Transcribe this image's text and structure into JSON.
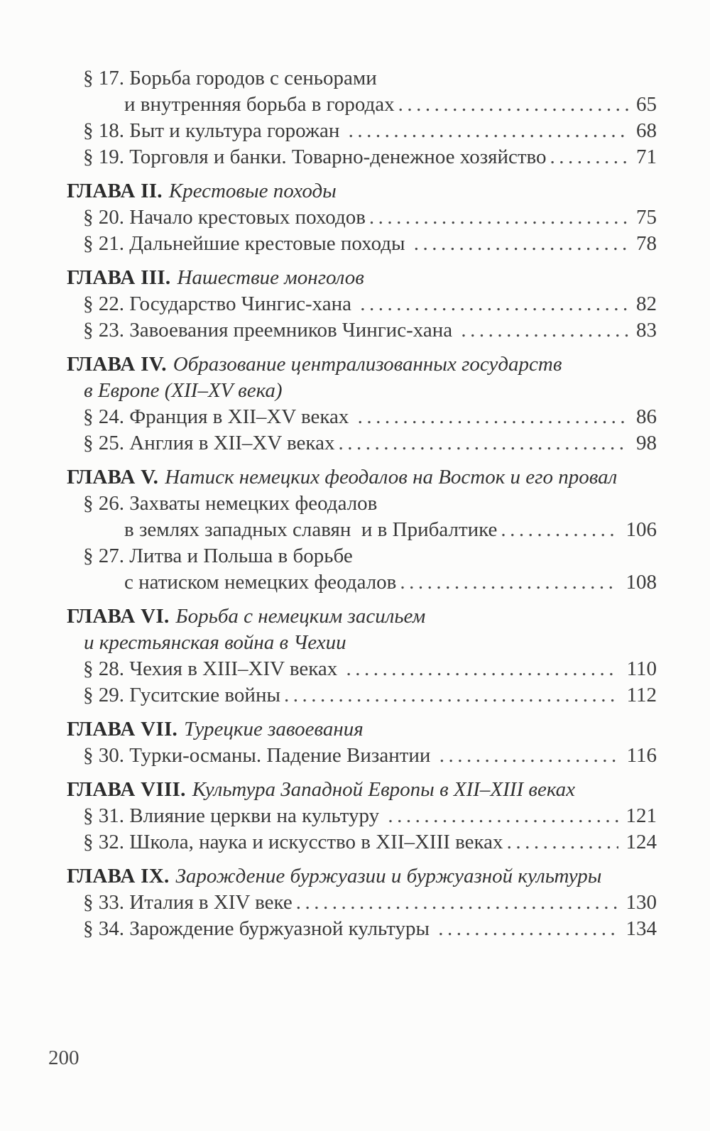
{
  "page": {
    "folio": "200"
  },
  "toc": {
    "lines": [
      {
        "style": "section",
        "text": "§ 17. Борьба городов с сеньорами"
      },
      {
        "style": "section-cont",
        "text": "и внутренняя борьба в городах",
        "page": "65"
      },
      {
        "style": "section",
        "text": "§ 18. Быт и культура горожан ",
        "page": "68"
      },
      {
        "style": "section",
        "text": "§ 19. Торговля и банки. Товарно-денежное хозяйство",
        "page": "71"
      },
      {
        "style": "chapter",
        "bold": "ГЛАВА II.",
        "italic": "Крестовые походы"
      },
      {
        "style": "section",
        "text": "§ 20. Начало крестовых походов",
        "page": "75"
      },
      {
        "style": "section",
        "text": "§ 21. Дальнейшие крестовые походы ",
        "page": "78"
      },
      {
        "style": "chapter",
        "bold": "ГЛАВА III.",
        "italic": "Нашествие монголов"
      },
      {
        "style": "section",
        "text": "§ 22. Государство Чингис-хана ",
        "page": "82"
      },
      {
        "style": "section",
        "text": "§ 23. Завоевания преемников Чингис-хана ",
        "page": "83"
      },
      {
        "style": "chapter",
        "bold": "ГЛАВА IV.",
        "italic": "Образование централизованных государств"
      },
      {
        "style": "chapter-cont",
        "italic": "в Европе (XII–XV века)"
      },
      {
        "style": "section",
        "text": "§ 24. Франция в XII–XV веках ",
        "page": "86"
      },
      {
        "style": "section",
        "text": "§ 25. Англия в XII–XV веках",
        "page": "98"
      },
      {
        "style": "chapter",
        "bold": "ГЛАВА V.",
        "italic": "Натиск немецких феодалов на Восток и его провал"
      },
      {
        "style": "section",
        "text": "§ 26. Захваты немецких феодалов"
      },
      {
        "style": "section-cont",
        "text": "в землях западных славян  и в Прибалтике",
        "page": "106"
      },
      {
        "style": "section",
        "text": "§ 27. Литва и Польша в борьбе"
      },
      {
        "style": "section-cont",
        "text": "с натиском немецких феодалов",
        "page": "108"
      },
      {
        "style": "chapter",
        "bold": "ГЛАВА VI.",
        "italic": "Борьба с немецким засильем"
      },
      {
        "style": "chapter-cont",
        "italic": "и крестьянская война в Чехии"
      },
      {
        "style": "section",
        "text": "§ 28. Чехия в XIII–XIV веках ",
        "page": "110"
      },
      {
        "style": "section",
        "text": "§ 29. Гуситские войны",
        "page": "112"
      },
      {
        "style": "chapter",
        "bold": "ГЛАВА VII.",
        "italic": "Турецкие завоевания"
      },
      {
        "style": "section",
        "text": "§ 30. Турки-османы. Падение Византии ",
        "page": "116"
      },
      {
        "style": "chapter",
        "bold": "ГЛАВА VIII.",
        "italic": "Культура Западной Европы в XII–XIII веках"
      },
      {
        "style": "section",
        "text": "§ 31. Влияние церкви на культуру ",
        "page": "121"
      },
      {
        "style": "section",
        "text": "§ 32. Школа, наука и искусство в XII–XIII веках",
        "page": "124"
      },
      {
        "style": "chapter",
        "bold": "ГЛАВА IX.",
        "italic": "Зарождение буржуазии  и буржуазной культуры"
      },
      {
        "style": "section",
        "text": "§ 33. Италия в XIV веке",
        "page": "130"
      },
      {
        "style": "section",
        "text": "§ 34. Зарождение буржуазной культуры ",
        "page": "134"
      }
    ]
  }
}
